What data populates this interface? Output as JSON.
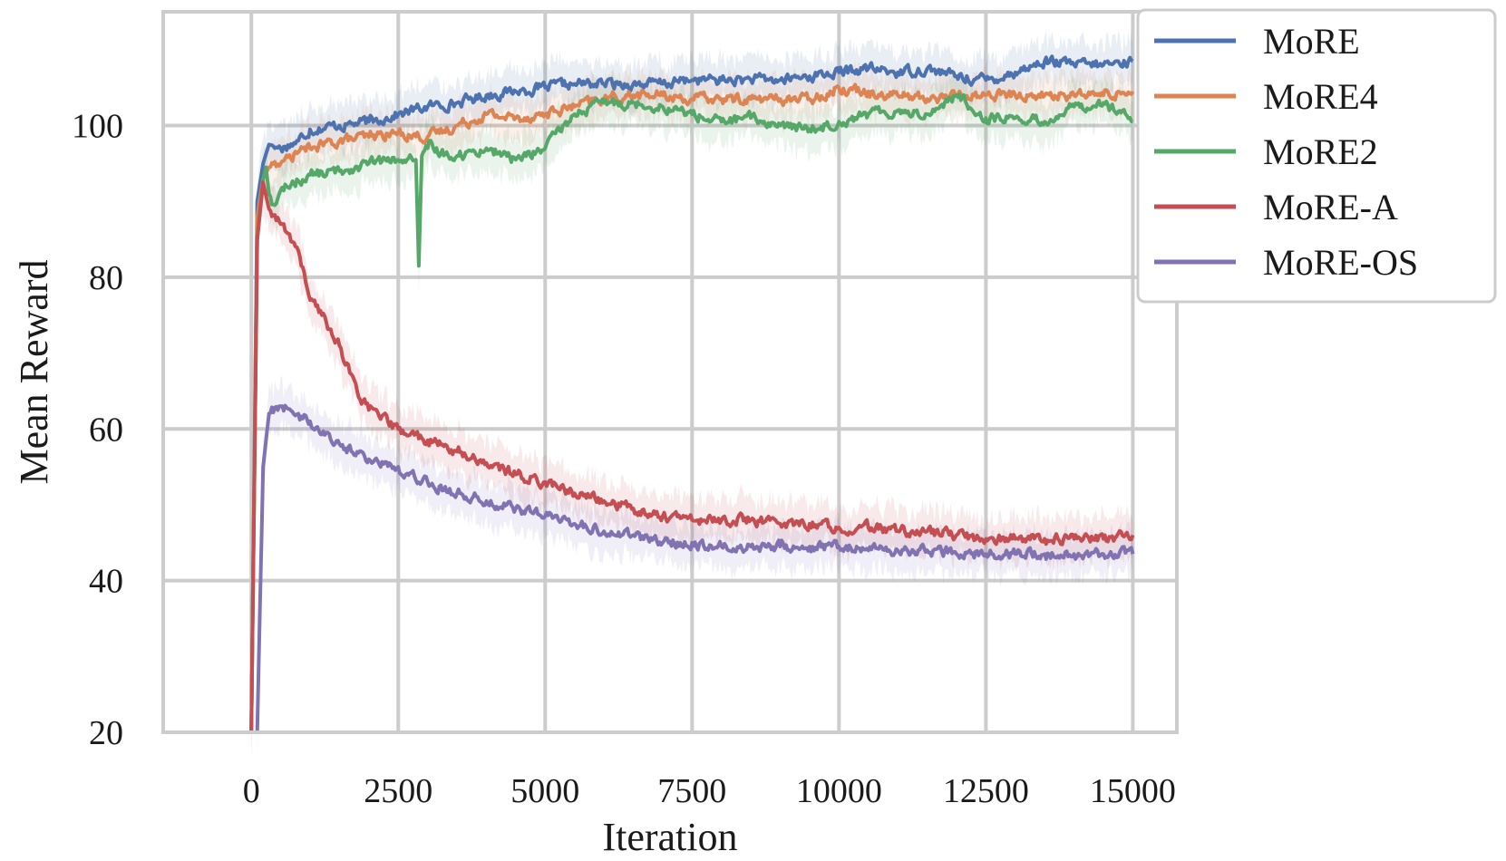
{
  "chart_data": {
    "type": "line",
    "title": "",
    "xlabel": "Iteration",
    "ylabel": "Mean Reward",
    "xlim": [
      -1500,
      15750
    ],
    "ylim": [
      20,
      115
    ],
    "xticks": [
      0,
      2500,
      5000,
      7500,
      10000,
      12500,
      15000
    ],
    "yticks": [
      20,
      40,
      60,
      80,
      100
    ],
    "xtick_labels": [
      "0",
      "2500",
      "5000",
      "7500",
      "10000",
      "12500",
      "15000"
    ],
    "ytick_labels": [
      "20",
      "40",
      "60",
      "80",
      "100"
    ],
    "grid": true,
    "legend_position": "outside-top-right",
    "series": [
      {
        "name": "MoRE",
        "color": "#4c72b0",
        "x": [
          0,
          100,
          200,
          300,
          500,
          800,
          1000,
          1500,
          2000,
          2500,
          3000,
          3500,
          4000,
          4500,
          5000,
          5500,
          6000,
          6500,
          7000,
          7500,
          8000,
          8500,
          9000,
          9500,
          10000,
          10500,
          11000,
          11500,
          12000,
          12500,
          13000,
          13500,
          14000,
          14500,
          15000
        ],
        "y": [
          20,
          90,
          95,
          97.5,
          97,
          98,
          99.5,
          100,
          100.5,
          101.5,
          102.5,
          103,
          104,
          104.5,
          105,
          105.5,
          105.5,
          105.5,
          105.5,
          106,
          106,
          106,
          106,
          106.5,
          107,
          107.5,
          107,
          107.5,
          106.5,
          106,
          107,
          108.5,
          108,
          108,
          108.5
        ]
      },
      {
        "name": "MoRE4",
        "color": "#dd8452",
        "x": [
          0,
          100,
          200,
          300,
          500,
          800,
          1000,
          1500,
          2000,
          2500,
          3000,
          3500,
          4000,
          4500,
          5000,
          5500,
          6000,
          6500,
          7000,
          7500,
          8000,
          8500,
          9000,
          9500,
          10000,
          10500,
          11000,
          11500,
          12000,
          12500,
          13000,
          13500,
          14000,
          14500,
          15000
        ],
        "y": [
          20,
          88,
          93,
          94.5,
          95,
          96.5,
          97,
          98,
          98.5,
          99,
          98.5,
          100,
          101.5,
          101,
          101.5,
          102.5,
          103.5,
          104,
          104,
          103.5,
          103.5,
          103.5,
          103.5,
          103.5,
          105,
          104.5,
          104,
          103.5,
          104,
          104,
          104,
          104,
          104,
          104,
          104.5
        ]
      },
      {
        "name": "MoRE2",
        "color": "#55a868",
        "x": [
          0,
          100,
          200,
          250,
          300,
          400,
          600,
          1000,
          1500,
          2000,
          2500,
          2800,
          2850,
          2900,
          3000,
          3500,
          4000,
          4500,
          5000,
          5500,
          6000,
          6500,
          7000,
          7500,
          8000,
          8500,
          9000,
          9500,
          10000,
          10500,
          11000,
          11500,
          12000,
          12500,
          13000,
          13500,
          14000,
          14500,
          15000
        ],
        "y": [
          20,
          85,
          93,
          94.5,
          91,
          89.5,
          92,
          93.5,
          94,
          95,
          95.5,
          95.5,
          81.5,
          96,
          97,
          96,
          97,
          95.5,
          97,
          101.5,
          103,
          103,
          102.5,
          101.5,
          100.5,
          101,
          100,
          99.5,
          100.5,
          101.5,
          102,
          101.5,
          104,
          101,
          101,
          100.5,
          102.5,
          103,
          100.5
        ]
      },
      {
        "name": "MoRE-A",
        "color": "#c44e52",
        "x": [
          0,
          100,
          200,
          300,
          500,
          800,
          1000,
          1200,
          1500,
          1800,
          2000,
          2500,
          3000,
          3500,
          4000,
          4500,
          5000,
          5500,
          6000,
          6500,
          7000,
          7500,
          8000,
          8500,
          9000,
          9500,
          10000,
          10500,
          11000,
          11500,
          12000,
          12500,
          13000,
          13500,
          14000,
          14500,
          15000
        ],
        "y": [
          20,
          85,
          92.5,
          89,
          87,
          83.5,
          77,
          75,
          71,
          65,
          62.5,
          60,
          58.5,
          57,
          55.5,
          54,
          53,
          51.5,
          50.5,
          49.5,
          48.5,
          48,
          48,
          48,
          47.5,
          47.5,
          47,
          47,
          46.5,
          46.5,
          46,
          45.5,
          45.5,
          45.5,
          45.5,
          45.5,
          46
        ]
      },
      {
        "name": "MoRE-OS",
        "color": "#8172b2",
        "x": [
          100,
          200,
          300,
          500,
          800,
          1000,
          1500,
          2000,
          2500,
          3000,
          3500,
          4000,
          4500,
          5000,
          5500,
          6000,
          6500,
          7000,
          7500,
          8000,
          8500,
          9000,
          9500,
          10000,
          10500,
          11000,
          11500,
          12000,
          12500,
          13000,
          13500,
          14000,
          14500,
          15000
        ],
        "y": [
          20,
          55,
          62,
          63,
          62,
          61,
          58,
          56,
          55,
          53,
          51.5,
          50.5,
          49.5,
          48.5,
          47.5,
          46.5,
          46,
          45,
          45,
          44.5,
          44.5,
          44.5,
          44.5,
          44.5,
          44,
          44,
          44,
          43.5,
          43.5,
          43.5,
          43.5,
          43.5,
          43.5,
          43.5
        ]
      }
    ]
  }
}
